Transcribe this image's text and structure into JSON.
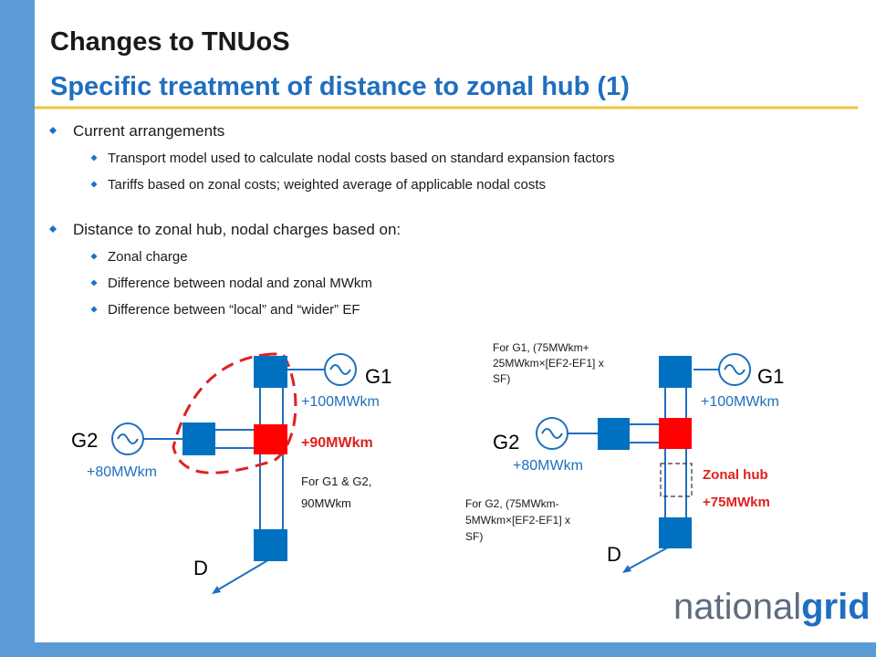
{
  "header": {
    "title": "Changes to TNUoS",
    "subtitle": "Specific treatment of distance to zonal hub (1)"
  },
  "bullets": [
    {
      "text": "Current arrangements",
      "sub": [
        "Transport model used to calculate nodal costs based on standard expansion factors",
        "Tariffs based on zonal costs; weighted average of applicable nodal costs"
      ]
    },
    {
      "text": "Distance to zonal hub, nodal charges based on:",
      "sub": [
        "Zonal charge",
        "Difference between nodal and zonal MWkm",
        "Difference between “local” and “wider” EF"
      ]
    }
  ],
  "diagram_left": {
    "g1": "G1",
    "g2": "G2",
    "d": "D",
    "g1_mwkm": "+100MWkm",
    "g2_mwkm": "+80MWkm",
    "hub_mwkm": "+90MWkm",
    "note": [
      "For G1 & G2,",
      "90MWkm"
    ]
  },
  "diagram_right": {
    "g1": "G1",
    "g2": "G2",
    "d": "D",
    "g1_mwkm": "+100MWkm",
    "g2_mwkm": "+80MWkm",
    "zonal_hub": "Zonal hub",
    "hub_mwkm": "+75MWkm",
    "note_g1": [
      "For G1, (75MWkm+",
      "25MWkm×[EF2-EF1] x",
      "SF)"
    ],
    "note_g2": [
      "For G2, (75MWkm-",
      "5MWkm×[EF2-EF1] x",
      "SF)"
    ]
  },
  "logo": {
    "text_a": "national",
    "text_b": "grid"
  }
}
